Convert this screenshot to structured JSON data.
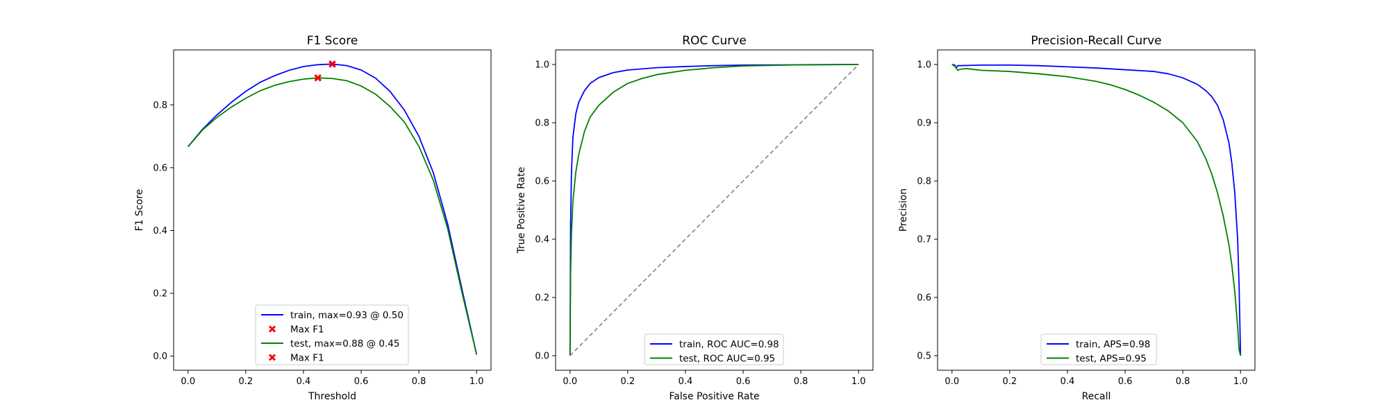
{
  "colors": {
    "train": "#0000ff",
    "test": "#008000",
    "marker": "#ff0000",
    "diagonal": "#808080"
  },
  "chart_data": [
    {
      "type": "line",
      "title": "F1 Score",
      "xlabel": "Threshold",
      "ylabel": "F1 Score",
      "xlim": [
        -0.05,
        1.05
      ],
      "ylim": [
        -0.045,
        0.975
      ],
      "xticks": [
        "0.0",
        "0.2",
        "0.4",
        "0.6",
        "0.8",
        "1.0"
      ],
      "yticks": [
        "0.0",
        "0.2",
        "0.4",
        "0.6",
        "0.8"
      ],
      "legend_position": "lower center",
      "series": [
        {
          "name": "train, max=0.93 @ 0.50",
          "color": "#0000ff",
          "x": [
            0.0,
            0.05,
            0.1,
            0.15,
            0.2,
            0.25,
            0.3,
            0.35,
            0.4,
            0.45,
            0.5,
            0.55,
            0.6,
            0.65,
            0.7,
            0.75,
            0.8,
            0.85,
            0.9,
            0.95,
            1.0
          ],
          "y": [
            0.667,
            0.722,
            0.768,
            0.808,
            0.843,
            0.872,
            0.893,
            0.91,
            0.922,
            0.928,
            0.93,
            0.925,
            0.911,
            0.885,
            0.843,
            0.783,
            0.7,
            0.584,
            0.42,
            0.21,
            0.005
          ]
        },
        {
          "name": "Max F1",
          "marker": "x",
          "color": "#ff0000",
          "x": [
            0.5
          ],
          "y": [
            0.93
          ]
        },
        {
          "name": "test, max=0.88 @ 0.45",
          "color": "#008000",
          "x": [
            0.0,
            0.05,
            0.1,
            0.15,
            0.2,
            0.25,
            0.3,
            0.35,
            0.4,
            0.45,
            0.5,
            0.55,
            0.6,
            0.65,
            0.7,
            0.75,
            0.8,
            0.85,
            0.9,
            0.95,
            1.0
          ],
          "y": [
            0.667,
            0.72,
            0.76,
            0.793,
            0.821,
            0.845,
            0.862,
            0.874,
            0.882,
            0.886,
            0.884,
            0.877,
            0.86,
            0.834,
            0.795,
            0.745,
            0.668,
            0.56,
            0.405,
            0.2,
            0.005
          ]
        },
        {
          "name": "Max F1",
          "marker": "x",
          "color": "#ff0000",
          "x": [
            0.45
          ],
          "y": [
            0.886
          ]
        }
      ]
    },
    {
      "type": "line",
      "title": "ROC Curve",
      "xlabel": "False Positive Rate",
      "ylabel": "True Positive Rate",
      "xlim": [
        -0.05,
        1.05
      ],
      "ylim": [
        -0.05,
        1.05
      ],
      "xticks": [
        "0.0",
        "0.2",
        "0.4",
        "0.6",
        "0.8",
        "1.0"
      ],
      "yticks": [
        "0.0",
        "0.2",
        "0.4",
        "0.6",
        "0.8",
        "1.0"
      ],
      "legend_position": "lower center",
      "series": [
        {
          "name": "train, ROC AUC=0.98",
          "color": "#0000ff",
          "x": [
            0.0,
            0.002,
            0.005,
            0.01,
            0.02,
            0.03,
            0.05,
            0.07,
            0.1,
            0.15,
            0.2,
            0.3,
            0.4,
            0.5,
            0.6,
            0.8,
            1.0
          ],
          "y": [
            0.0,
            0.45,
            0.63,
            0.75,
            0.83,
            0.87,
            0.91,
            0.935,
            0.955,
            0.972,
            0.981,
            0.989,
            0.993,
            0.996,
            0.998,
            0.999,
            1.0
          ]
        },
        {
          "name": "test, ROC AUC=0.95",
          "color": "#008000",
          "x": [
            0.0,
            0.002,
            0.005,
            0.01,
            0.02,
            0.03,
            0.05,
            0.07,
            0.1,
            0.15,
            0.2,
            0.25,
            0.3,
            0.4,
            0.5,
            0.6,
            0.8,
            1.0
          ],
          "y": [
            0.0,
            0.28,
            0.42,
            0.53,
            0.63,
            0.69,
            0.77,
            0.82,
            0.86,
            0.905,
            0.935,
            0.952,
            0.965,
            0.98,
            0.989,
            0.995,
            0.999,
            1.0
          ]
        },
        {
          "name": "",
          "color": "#808080",
          "dashed": true,
          "x": [
            0.0,
            1.0
          ],
          "y": [
            0.0,
            1.0
          ]
        }
      ]
    },
    {
      "type": "line",
      "title": "Precision-Recall Curve",
      "xlabel": "Recall",
      "ylabel": "Precision",
      "xlim": [
        -0.05,
        1.05
      ],
      "ylim": [
        0.475,
        1.025
      ],
      "xticks": [
        "0.0",
        "0.2",
        "0.4",
        "0.6",
        "0.8",
        "1.0"
      ],
      "yticks": [
        "0.5",
        "0.6",
        "0.7",
        "0.8",
        "0.9",
        "1.0"
      ],
      "legend_position": "lower center",
      "series": [
        {
          "name": "train, APS=0.98",
          "color": "#0000ff",
          "x": [
            0.0,
            0.01,
            0.015,
            0.02,
            0.03,
            0.1,
            0.2,
            0.3,
            0.4,
            0.5,
            0.6,
            0.7,
            0.75,
            0.8,
            0.85,
            0.88,
            0.9,
            0.92,
            0.94,
            0.96,
            0.97,
            0.98,
            0.99,
            0.995,
            1.0
          ],
          "y": [
            1.0,
            0.999,
            0.994,
            0.998,
            0.998,
            0.999,
            0.999,
            0.998,
            0.996,
            0.994,
            0.991,
            0.988,
            0.984,
            0.977,
            0.966,
            0.955,
            0.945,
            0.93,
            0.905,
            0.865,
            0.83,
            0.78,
            0.7,
            0.62,
            0.5
          ]
        },
        {
          "name": "test, APS=0.95",
          "color": "#008000",
          "x": [
            0.0,
            0.01,
            0.02,
            0.03,
            0.05,
            0.1,
            0.2,
            0.3,
            0.4,
            0.5,
            0.55,
            0.6,
            0.65,
            0.7,
            0.75,
            0.8,
            0.85,
            0.88,
            0.9,
            0.92,
            0.94,
            0.96,
            0.97,
            0.98,
            0.99,
            0.995,
            1.0
          ],
          "y": [
            1.0,
            0.997,
            0.99,
            0.992,
            0.993,
            0.99,
            0.988,
            0.984,
            0.979,
            0.971,
            0.965,
            0.957,
            0.947,
            0.935,
            0.92,
            0.9,
            0.868,
            0.838,
            0.812,
            0.78,
            0.74,
            0.69,
            0.655,
            0.61,
            0.55,
            0.51,
            0.5
          ]
        }
      ]
    }
  ]
}
